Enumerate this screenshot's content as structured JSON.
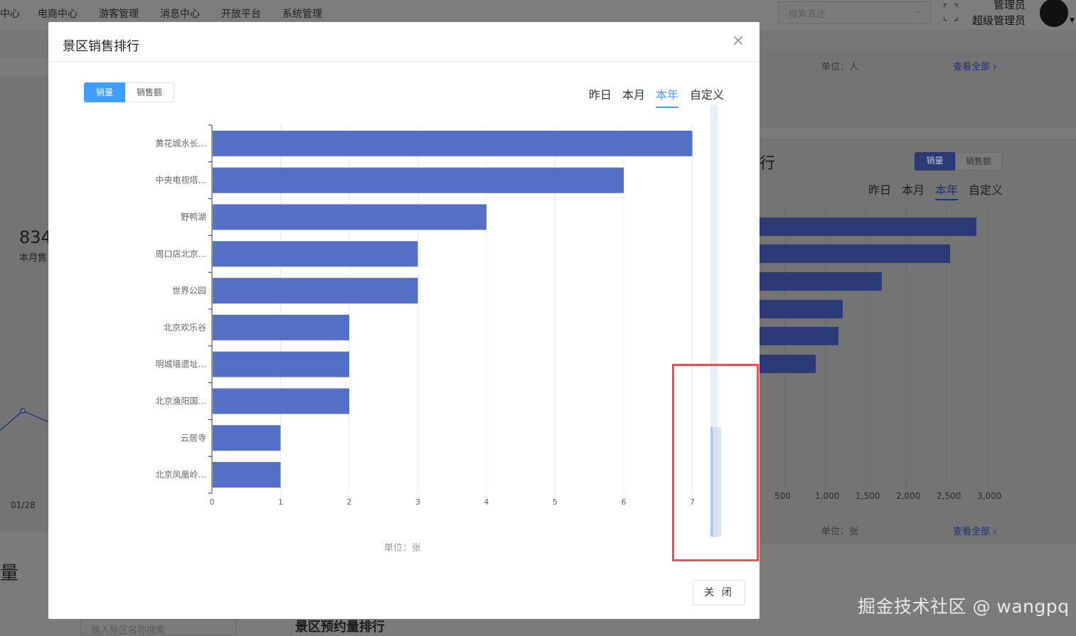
{
  "background": {
    "nav_items": [
      "中心",
      "电商中心",
      "游客管理",
      "消息中心",
      "开放平台",
      "系统管理"
    ],
    "search_placeholder": "搜索直达",
    "user_role_line1": "管理员",
    "user_role_line2": "超级管理员",
    "top_unit": "单位：人",
    "top_view_all": "查看全部",
    "stat_value": "834",
    "stat_label": "本月售",
    "x_date": "01/28",
    "section_heading": "量",
    "partial_title": "行",
    "search_scenic_placeholder": "输入景区名称搜索",
    "bottom_heading": "景区预约量排行",
    "seg_options": [
      "销量",
      "销售额"
    ],
    "periods": [
      "昨日",
      "本月",
      "本年",
      "自定义"
    ],
    "ticks": [
      "500",
      "1,000",
      "1,500",
      "2,000",
      "2,500",
      "3,000"
    ],
    "unit": "单位：张",
    "view_all": "查看全部",
    "bar_values": [
      2875,
      2550,
      1705,
      1220,
      1170,
      890
    ]
  },
  "modal": {
    "title": "景区销售排行",
    "close_icon": "close-icon",
    "seg_options": [
      "销量",
      "销售额"
    ],
    "seg_active": 0,
    "periods": [
      "昨日",
      "本月",
      "本年",
      "自定义"
    ],
    "period_active": 2,
    "unit_label": "单位：张",
    "close_button": "关 闭"
  },
  "chart_data": {
    "type": "bar",
    "orientation": "horizontal",
    "categories": [
      "黄花城水长...",
      "中央电视塔...",
      "野鸭湖",
      "周口店北京...",
      "世界公园",
      "北京欢乐谷",
      "明城墙遗址...",
      "北京渔阳国...",
      "云居寺",
      "北京凤凰岭..."
    ],
    "values": [
      7,
      6,
      4,
      3,
      3,
      2,
      2,
      2,
      1,
      1
    ],
    "xlim": [
      0,
      7
    ],
    "xticks": [
      "0",
      "1",
      "2",
      "3",
      "4",
      "5",
      "6",
      "7"
    ],
    "xlabel": "单位：张",
    "bar_color": "#5470c6",
    "datazoom": {
      "type": "slider",
      "orientation": "vertical",
      "start_percent": 0,
      "end_percent": 100
    }
  },
  "watermark": "掘金技术社区 @ wangpq"
}
